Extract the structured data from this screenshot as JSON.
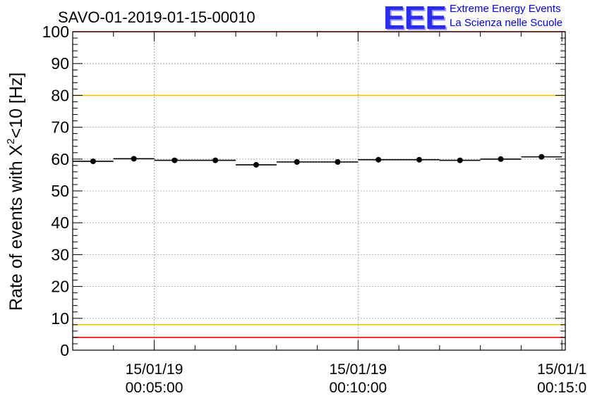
{
  "chart_data": {
    "type": "scatter",
    "title": "SAVO-01-2019-01-15-00010",
    "ylabel_main": "Rate of events with X",
    "ylabel_sup": "2",
    "ylabel_tail": "<10 [Hz]",
    "xlabel": "",
    "xlim": [
      180,
      905
    ],
    "ylim": [
      0,
      100
    ],
    "y_ticks": [
      "0",
      "10",
      "20",
      "30",
      "40",
      "50",
      "60",
      "70",
      "80",
      "90",
      "100"
    ],
    "x_ticks": [
      {
        "t": 300,
        "date": "15/01/19",
        "time": "00:05:00"
      },
      {
        "t": 600,
        "date": "15/01/19",
        "time": "00:10:00"
      },
      {
        "t": 900,
        "date": "15/01/1",
        "time": "00:15:0"
      }
    ],
    "points": [
      {
        "x": 210,
        "y": 59.3,
        "xlo": 180,
        "xhi": 240
      },
      {
        "x": 270,
        "y": 60.1,
        "xlo": 240,
        "xhi": 300
      },
      {
        "x": 330,
        "y": 59.6,
        "xlo": 300,
        "xhi": 360
      },
      {
        "x": 390,
        "y": 59.6,
        "xlo": 360,
        "xhi": 420
      },
      {
        "x": 450,
        "y": 58.2,
        "xlo": 420,
        "xhi": 480
      },
      {
        "x": 510,
        "y": 59.1,
        "xlo": 480,
        "xhi": 540
      },
      {
        "x": 570,
        "y": 59.1,
        "xlo": 540,
        "xhi": 600
      },
      {
        "x": 630,
        "y": 59.8,
        "xlo": 600,
        "xhi": 660
      },
      {
        "x": 690,
        "y": 59.8,
        "xlo": 660,
        "xhi": 720
      },
      {
        "x": 750,
        "y": 59.6,
        "xlo": 720,
        "xhi": 780
      },
      {
        "x": 810,
        "y": 60.0,
        "xlo": 780,
        "xhi": 840
      },
      {
        "x": 870,
        "y": 60.7,
        "xlo": 840,
        "xhi": 900
      }
    ],
    "reference_lines": [
      {
        "name": "red-upper",
        "y": 100,
        "color": "#ff0000"
      },
      {
        "name": "yellow-upper",
        "y": 80,
        "color": "#f2c400"
      },
      {
        "name": "yellow-lower",
        "y": 8,
        "color": "#f2c400"
      },
      {
        "name": "red-lower",
        "y": 4,
        "color": "#ff0000"
      }
    ],
    "grid": true
  },
  "logo": {
    "mark": "EEE",
    "line1": "Extreme Energy Events",
    "line2": "La Scienza nelle Scuole"
  }
}
